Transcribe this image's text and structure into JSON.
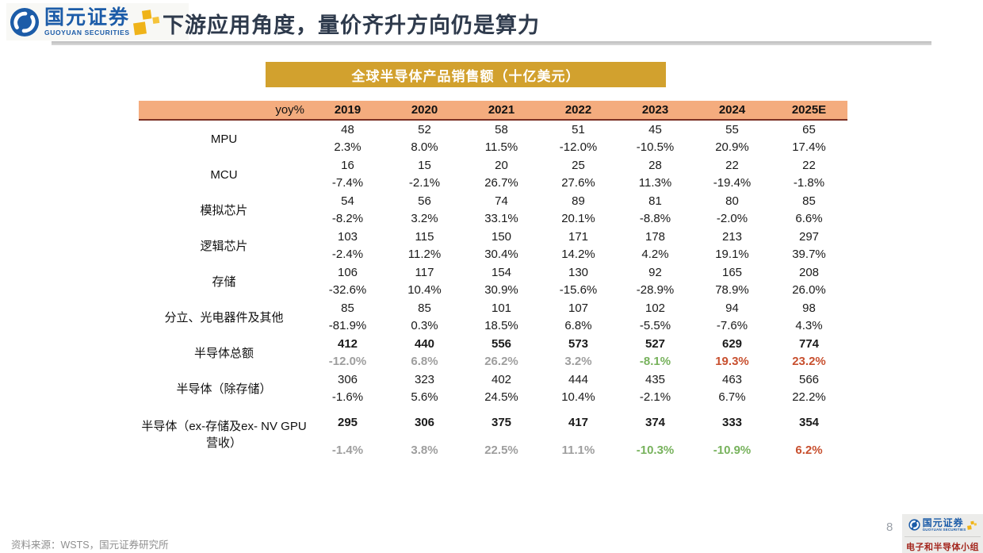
{
  "header": {
    "logo_cn": "国元证券",
    "logo_en": "GUOYUAN SECURITIES",
    "title": "下游应用角度，量价齐升方向仍是算力"
  },
  "table_title": "全球半导体产品销售额（十亿美元）",
  "chart_data": {
    "type": "table",
    "title": "全球半导体产品销售额（十亿美元）",
    "yoy_label": "yoy%",
    "years": [
      "2019",
      "2020",
      "2021",
      "2022",
      "2023",
      "2024",
      "2025E"
    ],
    "rows": [
      {
        "label": "MPU",
        "values": [
          "48",
          "52",
          "58",
          "51",
          "45",
          "55",
          "65"
        ],
        "yoy": [
          "2.3%",
          "8.0%",
          "11.5%",
          "-12.0%",
          "-10.5%",
          "20.9%",
          "17.4%"
        ]
      },
      {
        "label": "MCU",
        "values": [
          "16",
          "15",
          "20",
          "25",
          "28",
          "22",
          "22"
        ],
        "yoy": [
          "-7.4%",
          "-2.1%",
          "26.7%",
          "27.6%",
          "11.3%",
          "-19.4%",
          "-1.8%"
        ]
      },
      {
        "label": "模拟芯片",
        "values": [
          "54",
          "56",
          "74",
          "89",
          "81",
          "80",
          "85"
        ],
        "yoy": [
          "-8.2%",
          "3.2%",
          "33.1%",
          "20.1%",
          "-8.8%",
          "-2.0%",
          "6.6%"
        ]
      },
      {
        "label": "逻辑芯片",
        "values": [
          "103",
          "115",
          "150",
          "171",
          "178",
          "213",
          "297"
        ],
        "yoy": [
          "-2.4%",
          "11.2%",
          "30.4%",
          "14.2%",
          "4.2%",
          "19.1%",
          "39.7%"
        ]
      },
      {
        "label": "存储",
        "values": [
          "106",
          "117",
          "154",
          "130",
          "92",
          "165",
          "208"
        ],
        "yoy": [
          "-32.6%",
          "10.4%",
          "30.9%",
          "-15.6%",
          "-28.9%",
          "78.9%",
          "26.0%"
        ]
      },
      {
        "label": "分立、光电器件及其他",
        "values": [
          "85",
          "85",
          "101",
          "107",
          "102",
          "94",
          "98"
        ],
        "yoy": [
          "-81.9%",
          "0.3%",
          "18.5%",
          "6.8%",
          "-5.5%",
          "-7.6%",
          "4.3%"
        ]
      },
      {
        "label": "半导体总额",
        "bold": true,
        "values": [
          "412",
          "440",
          "556",
          "573",
          "527",
          "629",
          "774"
        ],
        "yoy": [
          "-12.0%",
          "6.8%",
          "26.2%",
          "3.2%",
          "-8.1%",
          "19.3%",
          "23.2%"
        ],
        "yoy_colors": [
          "gray",
          "gray",
          "gray",
          "gray",
          "green",
          "red",
          "red"
        ]
      },
      {
        "label": "半导体（除存储）",
        "values": [
          "306",
          "323",
          "402",
          "444",
          "435",
          "463",
          "566"
        ],
        "yoy": [
          "-1.6%",
          "5.6%",
          "24.5%",
          "10.4%",
          "-2.1%",
          "6.7%",
          "22.2%"
        ]
      },
      {
        "label": "半导体（ex-存储及ex- NV GPU营收）",
        "bold": true,
        "tall": true,
        "values": [
          "295",
          "306",
          "375",
          "417",
          "374",
          "333",
          "354"
        ],
        "yoy": [
          "-1.4%",
          "3.8%",
          "22.5%",
          "11.1%",
          "-10.3%",
          "-10.9%",
          "6.2%"
        ],
        "yoy_colors": [
          "gray",
          "gray",
          "gray",
          "gray",
          "green",
          "green",
          "red"
        ]
      }
    ]
  },
  "footer": {
    "source": "资料来源：WSTS，国元证券研究所",
    "page": "8",
    "team": "电子和半导体小组"
  },
  "colors": {
    "brand_blue": "#1c5ca8",
    "accent_gold_bar": "#d2a12e",
    "table_header_bg": "#f4ac7e",
    "table_header_border": "#7b3125",
    "yoy_green": "#77b25c",
    "yoy_red": "#c8502f",
    "yoy_gray": "#9e9e9e",
    "title_text": "#2e3a4c",
    "team_red": "#a3251c",
    "pixel_gold": "#efb319"
  }
}
